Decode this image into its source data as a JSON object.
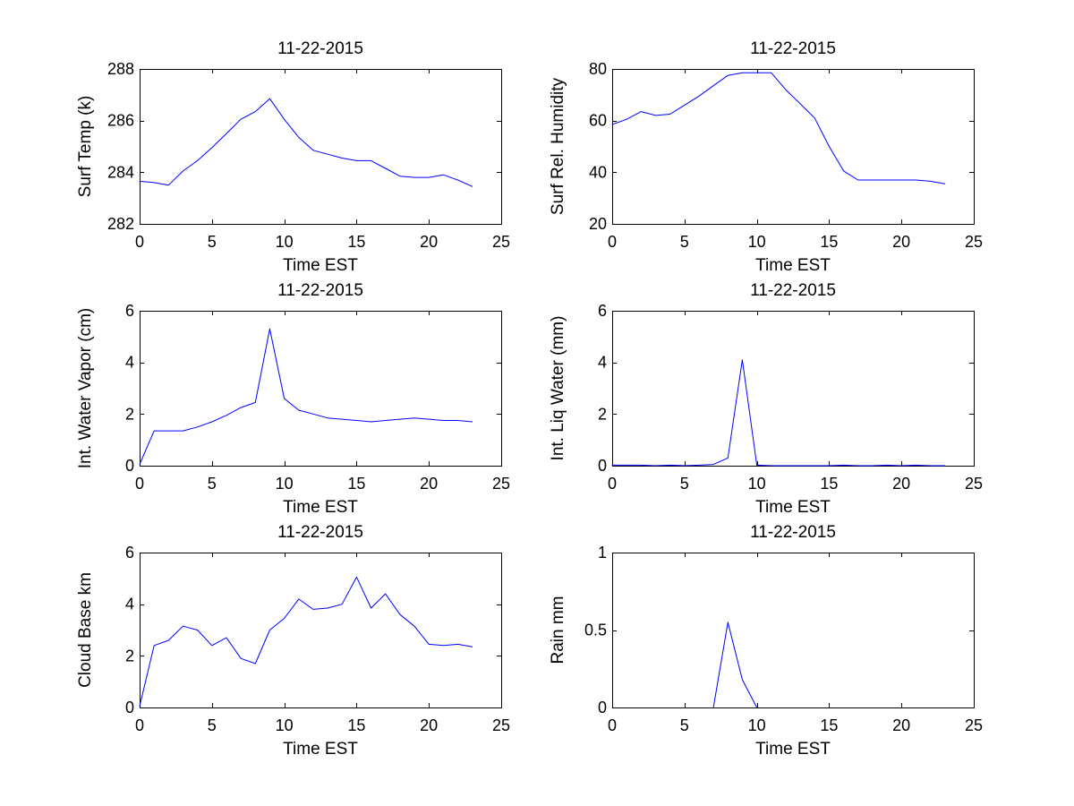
{
  "colors": {
    "line": "#0000ff",
    "axes": "#000000",
    "background": "#ffffff"
  },
  "chart_data": [
    {
      "type": "line",
      "title": "11-22-2015",
      "xlabel": "Time EST",
      "ylabel": "Surf Temp (k)",
      "xlim": [
        0,
        25
      ],
      "ylim": [
        282,
        288
      ],
      "xticks": [
        0,
        5,
        10,
        15,
        20,
        25
      ],
      "yticks": [
        282,
        284,
        286,
        288
      ],
      "x": [
        0,
        1,
        2,
        3,
        4,
        5,
        6,
        7,
        8,
        9,
        10,
        11,
        12,
        13,
        14,
        15,
        16,
        17,
        18,
        19,
        20,
        21,
        22,
        23
      ],
      "y": [
        283.65,
        283.6,
        283.5,
        284.05,
        284.45,
        284.95,
        285.5,
        286.05,
        286.35,
        286.85,
        286.05,
        285.35,
        284.85,
        284.7,
        284.55,
        284.45,
        284.45,
        284.15,
        283.85,
        283.8,
        283.8,
        283.9,
        283.7,
        283.45
      ]
    },
    {
      "type": "line",
      "title": "11-22-2015",
      "xlabel": "Time EST",
      "ylabel": "Surf Rel. Humidity",
      "xlim": [
        0,
        25
      ],
      "ylim": [
        20,
        80
      ],
      "xticks": [
        0,
        5,
        10,
        15,
        20,
        25
      ],
      "yticks": [
        20,
        40,
        60,
        80
      ],
      "x": [
        0,
        1,
        2,
        3,
        4,
        5,
        6,
        7,
        8,
        9,
        10,
        11,
        12,
        13,
        14,
        15,
        16,
        17,
        18,
        19,
        20,
        21,
        22,
        23
      ],
      "y": [
        58.5,
        60.5,
        63.5,
        62,
        62.5,
        66,
        69.5,
        73.5,
        77.5,
        78.5,
        78.5,
        78.5,
        72,
        66.5,
        61,
        50,
        40.5,
        37,
        37,
        37,
        37,
        37,
        36.5,
        35.5
      ]
    },
    {
      "type": "line",
      "title": "11-22-2015",
      "xlabel": "Time EST",
      "ylabel": "Int. Water Vapor (cm)",
      "xlim": [
        0,
        25
      ],
      "ylim": [
        0,
        6
      ],
      "xticks": [
        0,
        5,
        10,
        15,
        20,
        25
      ],
      "yticks": [
        0,
        2,
        4,
        6
      ],
      "x": [
        0,
        1,
        2,
        3,
        4,
        5,
        6,
        7,
        8,
        9,
        10,
        11,
        12,
        13,
        14,
        15,
        16,
        17,
        18,
        19,
        20,
        21,
        22,
        23
      ],
      "y": [
        0.05,
        1.35,
        1.35,
        1.35,
        1.5,
        1.7,
        1.95,
        2.25,
        2.45,
        5.3,
        2.6,
        2.15,
        2.0,
        1.85,
        1.8,
        1.75,
        1.7,
        1.75,
        1.8,
        1.85,
        1.8,
        1.75,
        1.75,
        1.7
      ]
    },
    {
      "type": "line",
      "title": "11-22-2015",
      "xlabel": "Time EST",
      "ylabel": "Int. Liq Water (mm)",
      "xlim": [
        0,
        25
      ],
      "ylim": [
        0,
        6
      ],
      "xticks": [
        0,
        5,
        10,
        15,
        20,
        25
      ],
      "yticks": [
        0,
        2,
        4,
        6
      ],
      "x": [
        0,
        1,
        2,
        3,
        4,
        5,
        6,
        7,
        8,
        9,
        10,
        11,
        12,
        13,
        14,
        15,
        16,
        17,
        18,
        19,
        20,
        21,
        22,
        23
      ],
      "y": [
        0.02,
        0.02,
        0.02,
        0,
        0.02,
        0,
        0.02,
        0.05,
        0.3,
        4.1,
        0.02,
        0,
        0,
        0,
        0,
        0,
        0.02,
        0,
        0,
        0.02,
        0,
        0.02,
        0,
        0
      ]
    },
    {
      "type": "line",
      "title": "11-22-2015",
      "xlabel": "Time EST",
      "ylabel": "Cloud Base km",
      "xlim": [
        0,
        25
      ],
      "ylim": [
        0,
        6
      ],
      "xticks": [
        0,
        5,
        10,
        15,
        20,
        25
      ],
      "yticks": [
        0,
        2,
        4,
        6
      ],
      "x": [
        0,
        1,
        2,
        3,
        4,
        5,
        6,
        7,
        8,
        9,
        10,
        11,
        12,
        13,
        14,
        15,
        16,
        17,
        18,
        19,
        20,
        21,
        22,
        23
      ],
      "y": [
        0.05,
        2.4,
        2.6,
        3.15,
        3.0,
        2.4,
        2.7,
        1.9,
        1.7,
        3.0,
        3.45,
        4.2,
        3.8,
        3.85,
        4.0,
        5.05,
        3.85,
        4.4,
        3.6,
        3.15,
        2.45,
        2.4,
        2.45,
        2.35
      ]
    },
    {
      "type": "line",
      "title": "11-22-2015",
      "xlabel": "Time EST",
      "ylabel": "Rain mm",
      "xlim": [
        0,
        25
      ],
      "ylim": [
        0,
        1
      ],
      "xticks": [
        0,
        5,
        10,
        15,
        20,
        25
      ],
      "yticks": [
        0,
        0.5,
        1
      ],
      "x": [
        7,
        8,
        9,
        10
      ],
      "y": [
        0,
        0.55,
        0.18,
        0
      ]
    }
  ]
}
